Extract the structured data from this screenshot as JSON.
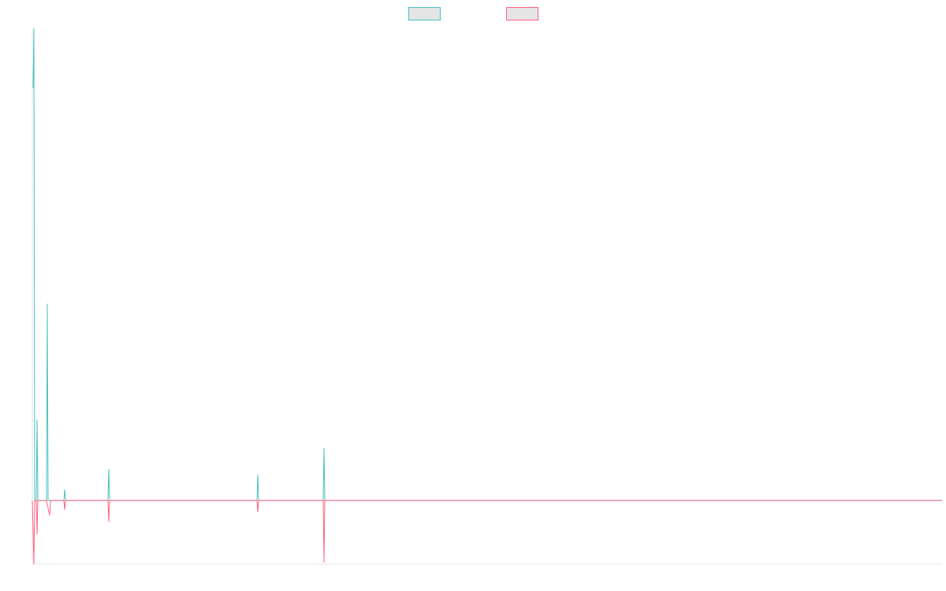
{
  "chart_data": {
    "type": "line",
    "title": "",
    "xlabel": "",
    "ylabel": "",
    "grid": false,
    "legend_placement": "top-center",
    "x": [
      0,
      1,
      2,
      3,
      4,
      5,
      6,
      7,
      8,
      9,
      10,
      11,
      12,
      13,
      14,
      15,
      16,
      17,
      18,
      19,
      20,
      21,
      22,
      23,
      24,
      25,
      26,
      27,
      28,
      29,
      30,
      31,
      32,
      33,
      34,
      35,
      36,
      37,
      38,
      39,
      40,
      41,
      42,
      43,
      44,
      45,
      46,
      47,
      48,
      49,
      50,
      51,
      52,
      53,
      54,
      55,
      56,
      57,
      58,
      59,
      60,
      61,
      62,
      63,
      64,
      65,
      66,
      67,
      68,
      69,
      70,
      71,
      72,
      73,
      74,
      75,
      76,
      77,
      78,
      79,
      80,
      81,
      82,
      83,
      84,
      85,
      86,
      87,
      88,
      89,
      90,
      91,
      92,
      93,
      94,
      95,
      96,
      97,
      98,
      99,
      100,
      101,
      102,
      103,
      104,
      105,
      106,
      107,
      108,
      109,
      110,
      111,
      112,
      113,
      114,
      115,
      116,
      117,
      118,
      119,
      120,
      121,
      122,
      123,
      124,
      125,
      126,
      127,
      128,
      129,
      130,
      131,
      132,
      133,
      134,
      135,
      136,
      137,
      138,
      139,
      140,
      141,
      142,
      143,
      144,
      145,
      146,
      147,
      148,
      149,
      150,
      151,
      152,
      153,
      154,
      155,
      156,
      157,
      158,
      159,
      160,
      161,
      162,
      163,
      164,
      165,
      166,
      167,
      168,
      169,
      170,
      171,
      172,
      173,
      174,
      175,
      176,
      177,
      178,
      179,
      180,
      181,
      182,
      183,
      184,
      185,
      186,
      187,
      188,
      189,
      190,
      191,
      192,
      193,
      194,
      195,
      196,
      197,
      198,
      199,
      200,
      201,
      202,
      203,
      204,
      205,
      206,
      207,
      208,
      209,
      210,
      211,
      212,
      213,
      214,
      215,
      216,
      217,
      218,
      219,
      220,
      221,
      222,
      223,
      224,
      225,
      226,
      227,
      228,
      229,
      230,
      231,
      232,
      233,
      234,
      235,
      236,
      237,
      238,
      239,
      240,
      241,
      242,
      243,
      244,
      245,
      246,
      247,
      248,
      249,
      250,
      251,
      252,
      253,
      254,
      255,
      256,
      257,
      258,
      259,
      260,
      261,
      262,
      263,
      264,
      265,
      266,
      267,
      268,
      269,
      270,
      271,
      272,
      273,
      274,
      275,
      276,
      277,
      278,
      279,
      280,
      281,
      282,
      283,
      284,
      285,
      286,
      287,
      288,
      289,
      290,
      291,
      292,
      293,
      294,
      295,
      296,
      297,
      298,
      299,
      300,
      301,
      302,
      303,
      304,
      305,
      306,
      307,
      308,
      309,
      310,
      311,
      312,
      313,
      314,
      315,
      316,
      317,
      318,
      319,
      320,
      321,
      322,
      323,
      324,
      325,
      326,
      327,
      328,
      329,
      330,
      331,
      332,
      333,
      334,
      335,
      336,
      337,
      338,
      339,
      340,
      341,
      342,
      343,
      344,
      345,
      346,
      347,
      348,
      349,
      350,
      351,
      352,
      353,
      354,
      355,
      356,
      357,
      358,
      359,
      360,
      361,
      362,
      363,
      364,
      365,
      366,
      367,
      368,
      369,
      370,
      371,
      372,
      373,
      374,
      375,
      376,
      377,
      378,
      379,
      380,
      381,
      382,
      383,
      384,
      385,
      386,
      387,
      388,
      389,
      390,
      391,
      392,
      393,
      394,
      395,
      396,
      397,
      398,
      399,
      400,
      401,
      402,
      403,
      404,
      405,
      406,
      407,
      408,
      409,
      410,
      411,
      412,
      413,
      414,
      415,
      416,
      417,
      418,
      419,
      420,
      421,
      422,
      423,
      424,
      425,
      426,
      427,
      428,
      429,
      430,
      431,
      432,
      433,
      434,
      435,
      436,
      437,
      438,
      439,
      440,
      441,
      442,
      443,
      444,
      445,
      446,
      447,
      448,
      449,
      450,
      451,
      452,
      453,
      454,
      455,
      456,
      457,
      458,
      459,
      460,
      461,
      462,
      463,
      464,
      465,
      466,
      467,
      468,
      469,
      470,
      471,
      472,
      473,
      474,
      475,
      476,
      477,
      478,
      479,
      480,
      481,
      482,
      483,
      484,
      485,
      486,
      487,
      488,
      489,
      490,
      491,
      492,
      493,
      494,
      495,
      496,
      497,
      498,
      499,
      500,
      501,
      502,
      503,
      504,
      505,
      506,
      507,
      508,
      509,
      510,
      511,
      512,
      513,
      514,
      515,
      516,
      517,
      518,
      519,
      520,
      521,
      522,
      523,
      524,
      525,
      526,
      527,
      528,
      529,
      530,
      531,
      532,
      533,
      534,
      535,
      536,
      537,
      538,
      539,
      540,
      541,
      542,
      543,
      544,
      545,
      546,
      547,
      548,
      549,
      550,
      551,
      552,
      553,
      554,
      555,
      556,
      557,
      558,
      559,
      560,
      561,
      562,
      563,
      564,
      565,
      566,
      567,
      568,
      569,
      570,
      571,
      572,
      573,
      574,
      575,
      576,
      577,
      578,
      579,
      580,
      581,
      582,
      583,
      584,
      585,
      586,
      587,
      588,
      589,
      590,
      591,
      592,
      593,
      594,
      595,
      596,
      597,
      598,
      599,
      600,
      601,
      602,
      603,
      604,
      605,
      606,
      607,
      608,
      609,
      610,
      611,
      612,
      613,
      614,
      615,
      616,
      617,
      618,
      619,
      620,
      621,
      622,
      623,
      624,
      625,
      626,
      627,
      628,
      629,
      630,
      631,
      632,
      633,
      634,
      635,
      636,
      637,
      638,
      639,
      640,
      641,
      642,
      643,
      644,
      645,
      646,
      647,
      648,
      649,
      650,
      651,
      652,
      653,
      654,
      655,
      656,
      657,
      658,
      659,
      660,
      661,
      662,
      663,
      664,
      665,
      666,
      667,
      668,
      669,
      670,
      671,
      672,
      673,
      674,
      675,
      676,
      677,
      678,
      679,
      680,
      681,
      682,
      683,
      684,
      685,
      686,
      687,
      688,
      689,
      690,
      691,
      692,
      693,
      694,
      695,
      696,
      697,
      698,
      699,
      700,
      701,
      702,
      703,
      704,
      705,
      706,
      707,
      708,
      709,
      710,
      711,
      712,
      713,
      714,
      715,
      716,
      717,
      718,
      719,
      720,
      721,
      722,
      723,
      724,
      725,
      726,
      727,
      728,
      729,
      730,
      731,
      732,
      733,
      734,
      735,
      736,
      737,
      738,
      739,
      740,
      741,
      742,
      743,
      744,
      745,
      746,
      747,
      748,
      749,
      750,
      751,
      752,
      753,
      754,
      755,
      756,
      757,
      758,
      759,
      760,
      761,
      762,
      763,
      764,
      765,
      766,
      767,
      768,
      769,
      770,
      771,
      772,
      773,
      774,
      775,
      776,
      777,
      778,
      779,
      780,
      781,
      782,
      783,
      784,
      785,
      786,
      787,
      788,
      789,
      790,
      791,
      792,
      793,
      794,
      795,
      796,
      797,
      798,
      799,
      800,
      801,
      802,
      803,
      804,
      805,
      806,
      807,
      808,
      809,
      810,
      811,
      812,
      813,
      814,
      815,
      816,
      817,
      818,
      819,
      820,
      821,
      822,
      823,
      824,
      825,
      826,
      827,
      828,
      829,
      830,
      831,
      832,
      833,
      834,
      835,
      836,
      837,
      838,
      839,
      840,
      841,
      842,
      843,
      844,
      845,
      846,
      847,
      848,
      849,
      850,
      851,
      852,
      853,
      854,
      855,
      856,
      857,
      858,
      859,
      860,
      861,
      862,
      863,
      864,
      865,
      866,
      867,
      868,
      869,
      870,
      871,
      872,
      873,
      874,
      875,
      876,
      877,
      878,
      879,
      880,
      881,
      882,
      883,
      884,
      885,
      886,
      887,
      888,
      889,
      890,
      891,
      892,
      893,
      894,
      895,
      896,
      897,
      898,
      899,
      900,
      901,
      902,
      903,
      904,
      905,
      906,
      907,
      908,
      909,
      910,
      911,
      912,
      913,
      914,
      915,
      916,
      917,
      918,
      919,
      920,
      921,
      922,
      923,
      924,
      925,
      926,
      927,
      928,
      929,
      930,
      931,
      932,
      933,
      934,
      935,
      936,
      937,
      938,
      939,
      940,
      941,
      942,
      943,
      944,
      945,
      946,
      947,
      948,
      949,
      950,
      951,
      952,
      953,
      954,
      955,
      956,
      957,
      958,
      959,
      960,
      961,
      962,
      963,
      964,
      965,
      966,
      967,
      968,
      969,
      970,
      971,
      972,
      973,
      974,
      975,
      976,
      977,
      978,
      979,
      980,
      981,
      982,
      983,
      984,
      985,
      986,
      987,
      988,
      989,
      990,
      991,
      992,
      993,
      994,
      995,
      996,
      997,
      998,
      999,
      1000,
      1001,
      1002,
      1003,
      1004,
      1005,
      1006,
      1007,
      1008,
      1009,
      1010,
      1011,
      1012,
      1013,
      1014,
      1015,
      1016,
      1017,
      1018,
      1019,
      1020,
      1021,
      1022,
      1023,
      1024,
      1025,
      1026,
      1027,
      1028,
      1029,
      1030,
      1031,
      1032,
      1033,
      1034,
      1035,
      1036,
      1037,
      1038,
      1039,
      1040,
      1041,
      1042,
      1043,
      1044,
      1045,
      1046,
      1047,
      1048,
      1049,
      1050,
      1051,
      1052,
      1053,
      1054,
      1055,
      1056,
      1057,
      1058,
      1059,
      1060,
      1061,
      1062,
      1063,
      1064,
      1065,
      1066,
      1067,
      1068,
      1069,
      1070,
      1071,
      1072,
      1073,
      1074,
      1075,
      1076,
      1077,
      1078,
      1079,
      1080,
      1081,
      1082,
      1083,
      1084,
      1085,
      1086,
      1087,
      1088,
      1089,
      1090,
      1091,
      1092,
      1093,
      1094,
      1095,
      1096,
      1097,
      1098,
      1099,
      1100,
      1101,
      1102,
      1103,
      1104,
      1105,
      1106,
      1107,
      1108,
      1109,
      1110,
      1111,
      1112,
      1113,
      1114,
      1115,
      1116,
      1117,
      1118,
      1119,
      1120,
      1121,
      1122,
      1123,
      1124,
      1125,
      1126,
      1127,
      1128,
      1129,
      1130,
      1131,
      1132,
      1133,
      1134,
      1135,
      1136,
      1137,
      1138,
      1139,
      1140,
      1141,
      1142,
      1143,
      1144,
      1145,
      1146,
      1147,
      1148,
      1149,
      1150,
      1151,
      1152,
      1153,
      1154
    ],
    "xlim": [
      0,
      1154
    ],
    "ylim": [
      -81,
      600
    ],
    "series": [
      {
        "color": "#4bc0c0",
        "points": [
          [
            0,
            525
          ],
          [
            1,
            525
          ],
          [
            2,
            600
          ],
          [
            3,
            0
          ],
          [
            5,
            0
          ],
          [
            6,
            103
          ],
          [
            7,
            0
          ],
          [
            18,
            0
          ],
          [
            19,
            250
          ],
          [
            20,
            0
          ],
          [
            40,
            0
          ],
          [
            41,
            14
          ],
          [
            42,
            0
          ],
          [
            96,
            0
          ],
          [
            97,
            40
          ],
          [
            98,
            0
          ],
          [
            285,
            0
          ],
          [
            286,
            33
          ],
          [
            287,
            0
          ],
          [
            369,
            0
          ],
          [
            370,
            67
          ],
          [
            371,
            0
          ],
          [
            1154,
            0
          ]
        ]
      },
      {
        "color": "#ff6384",
        "points": [
          [
            0,
            0
          ],
          [
            2,
            -81
          ],
          [
            3,
            0
          ],
          [
            5,
            0
          ],
          [
            6,
            -43
          ],
          [
            7,
            0
          ],
          [
            18,
            0
          ],
          [
            22,
            -19
          ],
          [
            23,
            0
          ],
          [
            40,
            0
          ],
          [
            41,
            -12
          ],
          [
            42,
            0
          ],
          [
            96,
            0
          ],
          [
            97,
            -27
          ],
          [
            98,
            0
          ],
          [
            285,
            0
          ],
          [
            286,
            -15
          ],
          [
            287,
            0
          ],
          [
            369,
            0
          ],
          [
            370,
            -79
          ],
          [
            371,
            0
          ],
          [
            1154,
            0
          ]
        ]
      }
    ]
  }
}
